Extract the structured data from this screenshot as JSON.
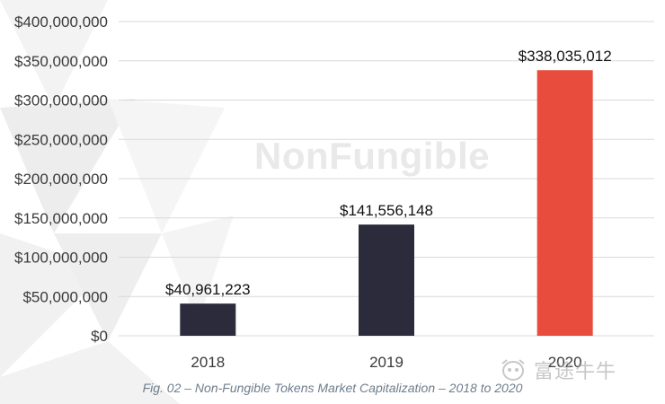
{
  "chart_data": {
    "type": "bar",
    "categories": [
      "2018",
      "2019",
      "2020"
    ],
    "values": [
      40961223,
      141556148,
      338035012
    ],
    "data_labels": [
      "$40,961,223",
      "$141,556,148",
      "$338,035,012"
    ],
    "bar_colors": [
      "#2b2b3b",
      "#2b2b3b",
      "#e84c3d"
    ],
    "ylim": [
      0,
      400000000
    ],
    "ytick_values": [
      0,
      50000000,
      100000000,
      150000000,
      200000000,
      250000000,
      300000000,
      350000000,
      400000000
    ],
    "ytick_labels": [
      "$0",
      "$50,000,000",
      "$100,000,000",
      "$150,000,000",
      "$200,000,000",
      "$250,000,000",
      "$300,000,000",
      "$350,000,000",
      "$400,000,000"
    ],
    "grid": true,
    "caption": "Fig. 02 – Non-Fungible Tokens Market Capitalization – 2018 to 2020"
  },
  "watermark": {
    "text": "NonFungible",
    "logo_text": "富途牛牛"
  },
  "colors": {
    "grid": "#d9d9d9",
    "axis_text": "#3a3a3a",
    "caption": "#6f7d8c"
  }
}
